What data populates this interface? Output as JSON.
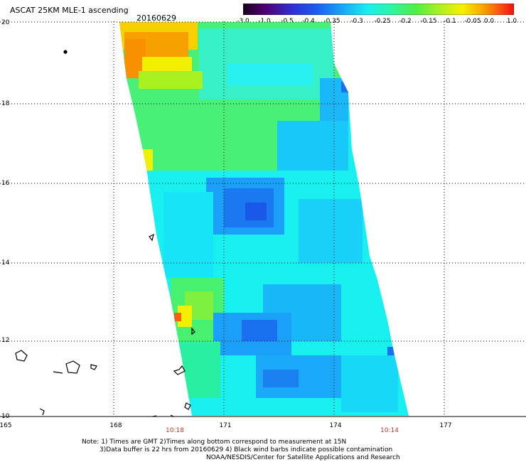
{
  "header": {
    "title": "ASCAT 25KM MLE-1 ascending",
    "date": "20160629"
  },
  "colorbar": {
    "labels": [
      "-3.0",
      "-1.0",
      "-0.5",
      "-0.4",
      "-0.35",
      "-0.3",
      "-0.25",
      "-0.2",
      "-0.15",
      "-0.1",
      "-0.05",
      "0.0",
      "1.0"
    ],
    "colors": [
      "#2a0030",
      "#5a0070",
      "#3a2ad0",
      "#1a5cf0",
      "#1aa0f8",
      "#18e4f4",
      "#30f4b0",
      "#60f048",
      "#a8f020",
      "#f0f000",
      "#f8b000",
      "#f86010",
      "#f01010"
    ]
  },
  "axes": {
    "y_labels": [
      "20",
      "18",
      "16",
      "14",
      "12",
      "10"
    ],
    "x_labels": [
      "165",
      "168",
      "171",
      "174",
      "177"
    ],
    "x_ticks": [
      "165",
      "168",
      "171",
      "174",
      "177"
    ]
  },
  "pass_times": [
    "10:18",
    "10:14"
  ],
  "notes": {
    "line1": "Note: 1) Times are GMT 2)Times along bottom correspond to measurement at 15N",
    "line2": "3)Data buffer is 22 hrs from 20160629 4) Black wind barbs indicate possible contamination",
    "line3": "NOAA/NESDIS/Center for Satellite Applications and Research"
  }
}
